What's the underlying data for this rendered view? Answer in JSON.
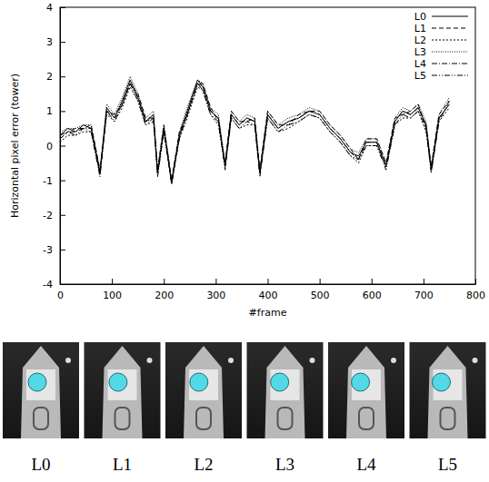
{
  "chart_data": {
    "type": "line",
    "y_label": "Horizontal pixel error (tower)",
    "x_label": "#frame",
    "x": [
      0,
      15,
      30,
      45,
      60,
      77,
      90,
      105,
      120,
      135,
      150,
      165,
      180,
      188,
      200,
      215,
      230,
      245,
      265,
      275,
      290,
      305,
      318,
      330,
      345,
      360,
      375,
      385,
      400,
      420,
      440,
      460,
      480,
      500,
      520,
      540,
      560,
      575,
      590,
      610,
      628,
      645,
      660,
      675,
      690,
      705,
      715,
      730,
      750
    ],
    "series": [
      {
        "name": "L0",
        "color": "#000000",
        "line_style": "solid",
        "values": [
          0.3,
          0.5,
          0.4,
          0.6,
          0.5,
          -0.8,
          1.1,
          0.8,
          1.3,
          1.9,
          1.4,
          0.7,
          0.9,
          -0.8,
          0.5,
          -1.1,
          0.3,
          1.0,
          1.9,
          1.7,
          1.0,
          0.8,
          -0.6,
          0.9,
          0.6,
          0.8,
          0.7,
          -0.8,
          0.9,
          0.5,
          0.7,
          0.8,
          1.0,
          0.9,
          0.5,
          0.2,
          -0.2,
          -0.3,
          0.1,
          0.1,
          -0.6,
          0.7,
          1.0,
          0.9,
          1.1,
          0.6,
          -0.7,
          0.8,
          1.2
        ]
      },
      {
        "name": "L1",
        "color": "#000000",
        "line_style": "dashed",
        "values": [
          0.2,
          0.4,
          0.5,
          0.5,
          0.6,
          -0.7,
          1.0,
          0.9,
          1.2,
          1.8,
          1.5,
          0.8,
          0.8,
          -0.7,
          0.6,
          -1.0,
          0.4,
          0.9,
          1.8,
          1.8,
          1.1,
          0.7,
          -0.5,
          1.0,
          0.7,
          0.7,
          0.8,
          -0.7,
          1.0,
          0.6,
          0.6,
          0.9,
          1.0,
          1.0,
          0.6,
          0.3,
          -0.1,
          -0.4,
          0.2,
          0.2,
          -0.5,
          0.8,
          0.9,
          1.0,
          1.2,
          0.5,
          -0.6,
          0.9,
          1.3
        ]
      },
      {
        "name": "L2",
        "color": "#000000",
        "line_style": "dotted",
        "values": [
          0.1,
          0.3,
          0.3,
          0.4,
          0.4,
          -0.8,
          0.9,
          0.7,
          1.1,
          1.7,
          1.3,
          0.6,
          0.7,
          -0.8,
          0.4,
          -1.0,
          0.2,
          0.8,
          1.7,
          1.6,
          0.9,
          0.6,
          -0.6,
          0.8,
          0.5,
          0.6,
          0.6,
          -0.8,
          0.8,
          0.4,
          0.5,
          0.7,
          0.9,
          0.8,
          0.4,
          0.1,
          -0.3,
          -0.5,
          0.0,
          0.0,
          -0.6,
          0.6,
          0.8,
          0.8,
          1.0,
          0.4,
          -0.7,
          0.7,
          1.1
        ]
      },
      {
        "name": "L3",
        "color": "#000000",
        "line_style": "densely-dotted",
        "values": [
          0.4,
          0.5,
          0.5,
          0.6,
          0.6,
          -0.7,
          1.2,
          0.9,
          1.4,
          2.0,
          1.5,
          0.8,
          1.0,
          -0.7,
          0.6,
          -1.0,
          0.4,
          1.1,
          1.9,
          1.8,
          1.1,
          0.9,
          -0.5,
          1.0,
          0.7,
          0.9,
          0.8,
          -0.7,
          1.0,
          0.6,
          0.8,
          0.9,
          1.1,
          1.0,
          0.6,
          0.3,
          -0.1,
          -0.2,
          0.2,
          0.2,
          -0.5,
          0.8,
          1.1,
          1.0,
          1.2,
          0.7,
          -0.6,
          0.9,
          1.4
        ]
      },
      {
        "name": "L4",
        "color": "#000000",
        "line_style": "dashdot",
        "values": [
          0.3,
          0.4,
          0.4,
          0.5,
          0.5,
          -0.8,
          1.0,
          0.8,
          1.2,
          1.8,
          1.4,
          0.7,
          0.8,
          -0.8,
          0.5,
          -1.1,
          0.3,
          0.9,
          1.8,
          1.7,
          1.0,
          0.8,
          -0.6,
          0.9,
          0.6,
          0.8,
          0.7,
          -0.8,
          0.9,
          0.5,
          0.7,
          0.8,
          1.0,
          0.9,
          0.5,
          0.2,
          -0.2,
          -0.4,
          0.1,
          0.1,
          -0.6,
          0.7,
          1.0,
          0.9,
          1.1,
          0.6,
          -0.7,
          0.8,
          1.2
        ]
      },
      {
        "name": "L5",
        "color": "#000000",
        "line_style": "dashdotdot",
        "values": [
          0.2,
          0.4,
          0.3,
          0.5,
          0.4,
          -0.9,
          1.0,
          0.7,
          1.2,
          1.8,
          1.3,
          0.6,
          0.8,
          -0.9,
          0.4,
          -1.1,
          0.2,
          0.9,
          1.8,
          1.6,
          0.9,
          0.7,
          -0.7,
          0.8,
          0.5,
          0.7,
          0.6,
          -0.9,
          0.8,
          0.4,
          0.6,
          0.7,
          0.9,
          0.8,
          0.4,
          0.1,
          -0.3,
          -0.4,
          0.0,
          0.0,
          -0.7,
          0.6,
          0.9,
          0.8,
          1.0,
          0.5,
          -0.8,
          0.7,
          1.3
        ]
      }
    ],
    "xlim": [
      0,
      800
    ],
    "xticks": [
      0,
      100,
      200,
      300,
      400,
      500,
      600,
      700,
      800
    ],
    "ylim": [
      -4,
      4
    ],
    "yticks": [
      -4,
      -3,
      -2,
      -1,
      0,
      1,
      2,
      3,
      4
    ],
    "legend": "top-right"
  },
  "thumbnails": {
    "labels": [
      "L0",
      "L1",
      "L2",
      "L3",
      "L4",
      "L5"
    ]
  }
}
